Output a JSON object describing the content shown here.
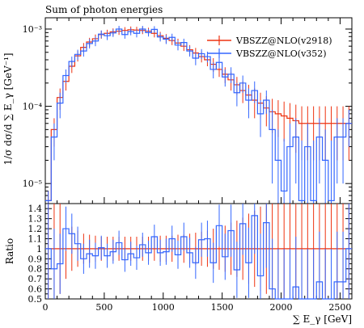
{
  "chart_data": [
    {
      "type": "histogram-line",
      "panel": "main",
      "title": "Sum of photon energies",
      "ylabel": "1/σ dσ/d ∑ E_γ [GeV⁻¹]",
      "yscale": "log",
      "ylim": [
        5.5e-06,
        0.0014
      ],
      "xlim": [
        0,
        2600
      ],
      "y_ticks": [
        {
          "value": 0.001,
          "label": "10⁻³"
        },
        {
          "value": 0.0001,
          "label": "10⁻⁴"
        },
        {
          "value": 1e-05,
          "label": "10⁻⁵"
        }
      ],
      "legend_position": "top-right",
      "series": [
        {
          "name": "VBSZZ@NLO(v2918)",
          "color": "#ee3311",
          "x_edges": [
            0,
            50,
            100,
            150,
            200,
            250,
            300,
            350,
            400,
            450,
            500,
            550,
            600,
            650,
            700,
            750,
            800,
            850,
            900,
            950,
            1000,
            1050,
            1100,
            1150,
            1200,
            1250,
            1300,
            1350,
            1400,
            1450,
            1500,
            1550,
            1600,
            1650,
            1700,
            1750,
            1800,
            1850,
            1900,
            1950,
            2000,
            2050,
            2100,
            2150,
            2200,
            2250,
            2300,
            2350,
            2400,
            2450,
            2500,
            2550,
            2600
          ],
          "values": [
            6e-06,
            5e-05,
            0.00013,
            0.00021,
            0.00033,
            0.00045,
            0.00058,
            0.00068,
            0.00075,
            0.00085,
            0.00088,
            0.00092,
            0.00094,
            0.00096,
            0.00098,
            0.00097,
            0.00096,
            0.00094,
            0.00088,
            0.00082,
            0.00076,
            0.00071,
            0.00066,
            0.0006,
            0.00054,
            0.00049,
            0.00044,
            0.0004,
            0.00035,
            0.0003,
            0.00026,
            0.00022,
            0.00019,
            0.00016,
            0.00014,
            0.00012,
            0.00011,
            9.5e-05,
            8.5e-05,
            8e-05,
            7.5e-05,
            7e-05,
            6.5e-05,
            6e-05,
            6e-05,
            6e-05,
            6e-05,
            6e-05,
            6e-05,
            6e-05,
            6e-05,
            6e-05
          ],
          "errors": [
            2e-06,
            2e-05,
            4e-05,
            5e-05,
            6e-05,
            7e-05,
            8e-05,
            9e-05,
            0.0001,
            0.0001,
            0.0001,
            0.0001,
            0.0001,
            0.0001,
            0.0001,
            0.0001,
            0.0001,
            0.0001,
            0.0001,
            0.0001,
            0.0001,
            9e-05,
            9e-05,
            8e-05,
            8e-05,
            8e-05,
            7e-05,
            7e-05,
            7e-05,
            6e-05,
            6e-05,
            6e-05,
            5e-05,
            5e-05,
            5e-05,
            5e-05,
            4e-05,
            4e-05,
            4e-05,
            4e-05,
            4e-05,
            4e-05,
            4e-05,
            4e-05,
            4e-05,
            4e-05,
            4e-05,
            4e-05,
            4e-05,
            4e-05,
            4e-05,
            4e-05
          ]
        },
        {
          "name": "VBSZZ@NLO(v352)",
          "color": "#3366ff",
          "x_edges": [
            0,
            50,
            100,
            150,
            200,
            250,
            300,
            350,
            400,
            450,
            500,
            550,
            600,
            650,
            700,
            750,
            800,
            850,
            900,
            950,
            1000,
            1050,
            1100,
            1150,
            1200,
            1250,
            1300,
            1350,
            1400,
            1450,
            1500,
            1550,
            1600,
            1650,
            1700,
            1750,
            1800,
            1850,
            1900,
            1950,
            2000,
            2050,
            2100,
            2150,
            2200,
            2250,
            2300,
            2350,
            2400,
            2450,
            2500,
            2550,
            2600
          ],
          "values": [
            6e-06,
            4e-05,
            0.00011,
            0.00025,
            0.00038,
            0.00047,
            0.00052,
            0.00065,
            0.0007,
            0.00086,
            0.00082,
            0.00089,
            0.001,
            0.00085,
            0.00093,
            0.00088,
            0.001,
            0.0009,
            0.00099,
            0.00079,
            0.00074,
            0.00078,
            0.00062,
            0.00067,
            0.00052,
            0.00042,
            0.00048,
            0.00044,
            0.0003,
            0.00037,
            0.00024,
            0.00026,
            0.00015,
            0.0002,
            0.00012,
            0.00016,
            8e-05,
            0.00012,
            5e-05,
            2e-05,
            8e-06,
            3e-05,
            4e-05,
            6e-06,
            3e-05,
            6e-06,
            4e-05,
            2e-05,
            6e-06,
            4e-05,
            4e-05,
            6e-05
          ],
          "errors": [
            2e-06,
            2e-05,
            4e-05,
            5e-05,
            6e-05,
            7e-05,
            8e-05,
            9e-05,
            0.0001,
            0.0001,
            0.0001,
            0.0001,
            0.0001,
            0.0001,
            0.0001,
            0.0001,
            0.0001,
            0.0001,
            0.0001,
            0.0001,
            0.0001,
            9e-05,
            9e-05,
            8e-05,
            8e-05,
            8e-05,
            7e-05,
            7e-05,
            7e-05,
            6e-05,
            6e-05,
            6e-05,
            5e-05,
            5e-05,
            5e-05,
            5e-05,
            4e-05,
            4e-05,
            4e-05,
            3e-05,
            3e-05,
            3e-05,
            3e-05,
            3e-05,
            3e-05,
            3e-05,
            3e-05,
            3e-05,
            3e-05,
            3e-05,
            3e-05,
            3e-05
          ]
        }
      ]
    },
    {
      "type": "histogram-line",
      "panel": "ratio",
      "xlabel": "∑ E_γ [GeV]",
      "ylabel": "Ratio",
      "xlim": [
        0,
        2600
      ],
      "ylim": [
        0.5,
        1.45
      ],
      "x_ticks": [
        {
          "value": 0,
          "label": "0"
        },
        {
          "value": 500,
          "label": "500"
        },
        {
          "value": 1000,
          "label": "1000"
        },
        {
          "value": 1500,
          "label": "1500"
        },
        {
          "value": 2000,
          "label": "2000"
        },
        {
          "value": 2500,
          "label": "2500"
        }
      ],
      "y_ticks": [
        {
          "value": 0.5,
          "label": "0.5"
        },
        {
          "value": 0.6,
          "label": "0.6"
        },
        {
          "value": 0.7,
          "label": "0.7"
        },
        {
          "value": 0.8,
          "label": "0.8"
        },
        {
          "value": 0.9,
          "label": "0.9"
        },
        {
          "value": 1.0,
          "label": "1"
        },
        {
          "value": 1.1,
          "label": "1.1"
        },
        {
          "value": 1.2,
          "label": "1.2"
        },
        {
          "value": 1.3,
          "label": "1.3"
        },
        {
          "value": 1.4,
          "label": "1.4"
        }
      ],
      "series": [
        {
          "name": "VBSZZ@NLO(v2918)",
          "color": "#ee3311",
          "values": [
            1,
            1,
            1,
            1,
            1,
            1,
            1,
            1,
            1,
            1,
            1,
            1,
            1,
            1,
            1,
            1,
            1,
            1,
            1,
            1,
            1,
            1,
            1,
            1,
            1,
            1,
            1,
            1,
            1,
            1,
            1,
            1,
            1,
            1,
            1,
            1,
            1,
            1,
            1,
            1,
            1,
            1,
            1,
            1,
            1,
            1,
            1,
            1,
            1,
            1,
            1,
            1
          ],
          "errors": [
            0.5,
            0.5,
            0.45,
            0.3,
            0.22,
            0.18,
            0.15,
            0.14,
            0.13,
            0.12,
            0.12,
            0.12,
            0.12,
            0.12,
            0.12,
            0.12,
            0.12,
            0.12,
            0.12,
            0.13,
            0.13,
            0.13,
            0.14,
            0.14,
            0.15,
            0.16,
            0.17,
            0.18,
            0.2,
            0.21,
            0.23,
            0.26,
            0.28,
            0.31,
            0.35,
            0.38,
            0.42,
            0.45,
            0.5,
            0.5,
            0.5,
            0.5,
            0.5,
            0.5,
            0.5,
            0.5,
            0.5,
            0.5,
            0.5,
            0.5,
            0.5,
            0.5
          ]
        },
        {
          "name": "VBSZZ@NLO(v352)",
          "color": "#3366ff",
          "values": [
            1.0,
            0.8,
            0.85,
            1.2,
            1.15,
            1.05,
            0.9,
            0.95,
            0.93,
            1.01,
            0.93,
            0.97,
            1.06,
            0.89,
            0.95,
            0.91,
            1.04,
            0.96,
            1.12,
            0.96,
            0.97,
            1.1,
            0.94,
            1.12,
            0.96,
            0.86,
            1.09,
            1.1,
            0.86,
            1.23,
            0.92,
            1.18,
            0.79,
            1.25,
            0.86,
            1.33,
            0.73,
            1.26,
            0.6,
            0.5,
            0.5,
            0.5,
            0.62,
            0.5,
            0.5,
            0.5,
            0.67,
            0.5,
            0.5,
            0.67,
            0.67,
            1.0
          ],
          "errors": [
            0.5,
            0.4,
            0.3,
            0.22,
            0.2,
            0.17,
            0.15,
            0.14,
            0.13,
            0.12,
            0.12,
            0.12,
            0.12,
            0.12,
            0.12,
            0.12,
            0.12,
            0.12,
            0.12,
            0.13,
            0.13,
            0.13,
            0.14,
            0.14,
            0.15,
            0.16,
            0.17,
            0.18,
            0.2,
            0.21,
            0.23,
            0.26,
            0.28,
            0.31,
            0.35,
            0.38,
            0.42,
            0.45,
            0.5,
            0.5,
            0.5,
            0.5,
            0.5,
            0.5,
            0.5,
            0.5,
            0.5,
            0.5,
            0.5,
            0.5,
            0.5,
            0.5
          ]
        }
      ]
    }
  ]
}
